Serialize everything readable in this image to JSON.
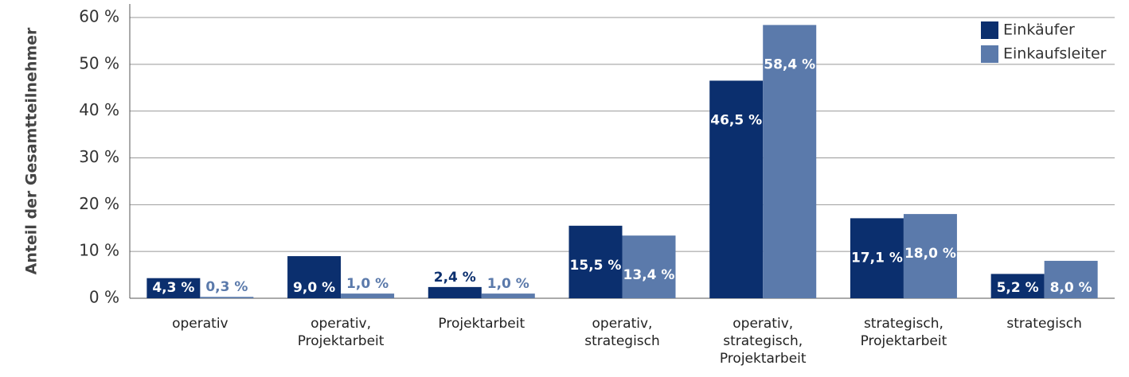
{
  "chart_data": {
    "type": "bar",
    "ylabel": "Anteil der Gesamtteilnehmer",
    "categories": [
      "operativ",
      "operativ, Projektarbeit",
      "Projektarbeit",
      "operativ, strategisch",
      "operativ, strategisch, Projektarbeit",
      "strategisch, Projektarbeit",
      "strategisch"
    ],
    "series": [
      {
        "name": "Einkäufer",
        "color": "#0b2f6e",
        "values": [
          4.3,
          9.0,
          2.4,
          15.5,
          46.5,
          17.1,
          5.2
        ],
        "value_labels": [
          "4,3 %",
          "9,0 %",
          "2,4 %",
          "15,5 %",
          "46,5 %",
          "17,1 %",
          "5,2 %"
        ]
      },
      {
        "name": "Einkaufsleiter",
        "color": "#5b7aab",
        "values": [
          0.3,
          1.0,
          1.0,
          13.4,
          58.4,
          18.0,
          8.0
        ],
        "value_labels": [
          "0,3 %",
          "1,0 %",
          "1,0 %",
          "13,4 %",
          "58,4 %",
          "18,0 %",
          "8,0 %"
        ]
      }
    ],
    "ylim": [
      0,
      60
    ],
    "yticks": [
      {
        "value": 0,
        "label": "0 %"
      },
      {
        "value": 10,
        "label": "10 %"
      },
      {
        "value": 20,
        "label": "20 %"
      },
      {
        "value": 30,
        "label": "30 %"
      },
      {
        "value": 40,
        "label": "40 %"
      },
      {
        "value": 50,
        "label": "50 %"
      },
      {
        "value": 60,
        "label": "60 %"
      }
    ],
    "grid": true,
    "legend": "upper right"
  }
}
